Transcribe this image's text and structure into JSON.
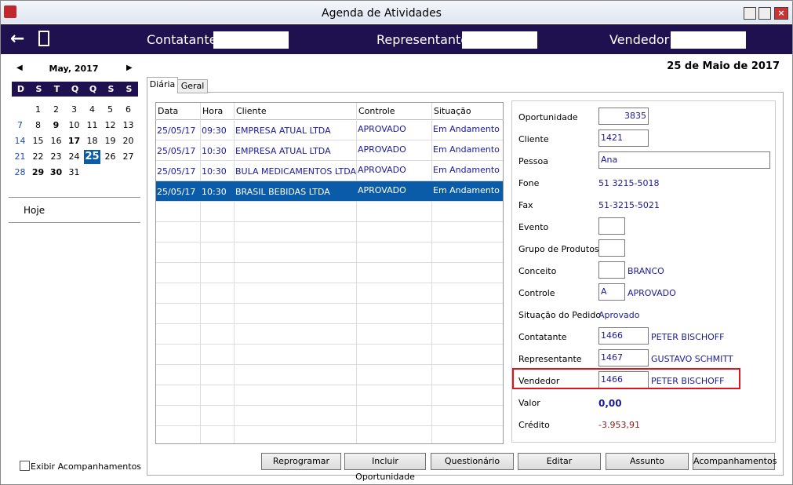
{
  "window": {
    "title": "Agenda de Atividades"
  },
  "toolbar": {
    "fields": [
      "Contatante",
      "Representante",
      "Vendedor"
    ]
  },
  "calendar": {
    "month": "May, 2017",
    "weekdays": [
      "D",
      "S",
      "T",
      "Q",
      "Q",
      "S",
      "S"
    ],
    "weeks": [
      [
        null,
        1,
        2,
        3,
        4,
        5,
        6
      ],
      [
        7,
        8,
        9,
        10,
        11,
        12,
        13
      ],
      [
        14,
        15,
        16,
        17,
        18,
        19,
        20
      ],
      [
        21,
        22,
        23,
        24,
        25,
        26,
        27
      ],
      [
        28,
        29,
        30,
        31,
        null,
        null,
        null
      ]
    ],
    "bold_days": [
      9,
      17,
      29,
      30
    ],
    "selected_day": 25
  },
  "sidebar": {
    "today": "Hoje",
    "checkbox": "Exibir Acompanhamentos"
  },
  "date_heading": "25 de Maio de 2017",
  "tabs": [
    "Diária",
    "Geral"
  ],
  "table": {
    "columns": [
      "Data",
      "Hora",
      "Cliente",
      "Controle",
      "Situação"
    ],
    "rows": [
      [
        "25/05/17",
        "09:30",
        "EMPRESA ATUAL LTDA",
        "APROVADO",
        "Em Andamento"
      ],
      [
        "25/05/17",
        "10:30",
        "EMPRESA ATUAL LTDA",
        "APROVADO",
        "Em Andamento"
      ],
      [
        "25/05/17",
        "10:30",
        "BULA MEDICAMENTOS LTDA",
        "APROVADO",
        "Em Andamento"
      ],
      [
        "25/05/17",
        "10:30",
        "BRASIL BEBIDAS LTDA",
        "APROVADO",
        "Em Andamento"
      ]
    ],
    "selected_row": 3
  },
  "details": {
    "fields": [
      {
        "label": "Oportunidade",
        "box": "long",
        "code": "3835",
        "align": "right"
      },
      {
        "label": "Cliente",
        "box": "long",
        "code": "1421"
      },
      {
        "label": "Pessoa",
        "box": "wide",
        "code": "Ana"
      },
      {
        "label": "Fone",
        "text": "51 3215-5018"
      },
      {
        "label": "Fax",
        "text": "51-3215-5021"
      },
      {
        "label": "Evento",
        "box": "short"
      },
      {
        "label": "Grupo de Produtos",
        "box": "short"
      },
      {
        "label": "Conceito",
        "box": "short",
        "text": "BRANCO"
      },
      {
        "label": "Controle",
        "box": "short",
        "code": "A",
        "text": "APROVADO"
      },
      {
        "label": "Situação do Pedido",
        "text": "Aprovado"
      },
      {
        "label": "Contatante",
        "box": "long",
        "code": "1466",
        "text": "PETER BISCHOFF"
      },
      {
        "label": "Representante",
        "box": "long",
        "code": "1467",
        "text": "GUSTAVO SCHMITT"
      },
      {
        "label": "Vendedor",
        "box": "long",
        "code": "1466",
        "text": "PETER BISCHOFF",
        "highlighted": true
      },
      {
        "label": "Valor",
        "text": "0,00",
        "style": "bold"
      },
      {
        "label": "Crédito",
        "text": "-3.953,91",
        "color": "#8b1a1a"
      }
    ]
  },
  "buttons": [
    "Reprogramar",
    "Incluir Oportunidade",
    "Questionário",
    "Editar",
    "Assunto",
    "Acompanhamentos"
  ]
}
